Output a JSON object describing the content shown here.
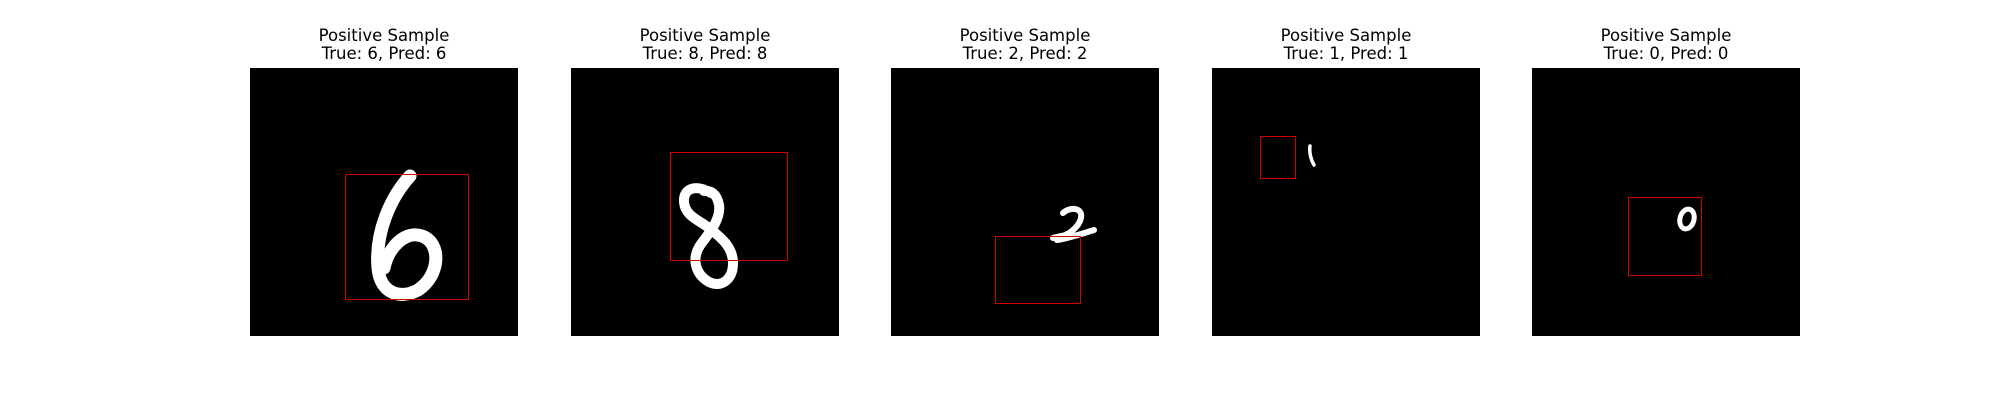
{
  "samples": [
    {
      "title": "Positive Sample",
      "subtitle": "True: 6, Pred: 6",
      "digit": "6"
    },
    {
      "title": "Positive Sample",
      "subtitle": "True: 8, Pred: 8",
      "digit": "8"
    },
    {
      "title": "Positive Sample",
      "subtitle": "True: 2, Pred: 2",
      "digit": "2"
    },
    {
      "title": "Positive Sample",
      "subtitle": "True: 1, Pred: 1",
      "digit": "1"
    },
    {
      "title": "Positive Sample",
      "subtitle": "True: 0, Pred: 0",
      "digit": "0"
    }
  ],
  "colors": {
    "image_bg": "#000000",
    "digit": "#ffffff",
    "bbox": "#d40000"
  }
}
